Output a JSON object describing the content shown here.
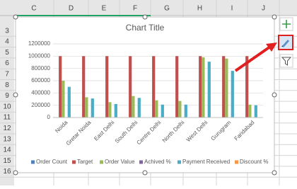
{
  "spreadsheet": {
    "columns": [
      "C",
      "D",
      "E",
      "F",
      "G",
      "H",
      "I",
      "J"
    ],
    "rows": [
      "3",
      "4",
      "5",
      "6",
      "7",
      "8",
      "9",
      "10",
      "11",
      "12",
      "13",
      "14",
      "15",
      "16"
    ]
  },
  "chart_data": {
    "type": "bar",
    "title": "Chart Title",
    "categories": [
      "Noida",
      "Gretar Noida",
      "East Delhi",
      "South Delhi",
      "Centre Delhi",
      "North Delhi",
      "West Delhi",
      "Gurugram",
      "Faridabad"
    ],
    "series": [
      {
        "name": "Order Count",
        "color": "#4f81bd",
        "values": [
          0,
          0,
          0,
          0,
          0,
          0,
          0,
          0,
          0
        ]
      },
      {
        "name": "Target",
        "color": "#c0504d",
        "values": [
          1000000,
          1000000,
          1000000,
          1000000,
          1000000,
          1000000,
          1000000,
          1000000,
          1000000
        ]
      },
      {
        "name": "Order Value",
        "color": "#9bbb59",
        "values": [
          600000,
          330000,
          250000,
          350000,
          280000,
          270000,
          980000,
          960000,
          210000
        ]
      },
      {
        "name": "Achived %",
        "color": "#8064a2",
        "values": [
          0,
          0,
          0,
          0,
          0,
          0,
          0,
          0,
          0
        ]
      },
      {
        "name": "Payment Received",
        "color": "#4bacc6",
        "values": [
          500000,
          310000,
          220000,
          320000,
          210000,
          210000,
          910000,
          760000,
          200000
        ]
      },
      {
        "name": "Discount %",
        "color": "#f79646",
        "values": [
          0,
          0,
          0,
          0,
          0,
          0,
          0,
          0,
          0
        ]
      }
    ],
    "ylim": [
      0,
      1200000
    ],
    "yticks": [
      0,
      200000,
      400000,
      600000,
      800000,
      1000000,
      1200000
    ],
    "grid": true,
    "legend": "bottom"
  }
}
